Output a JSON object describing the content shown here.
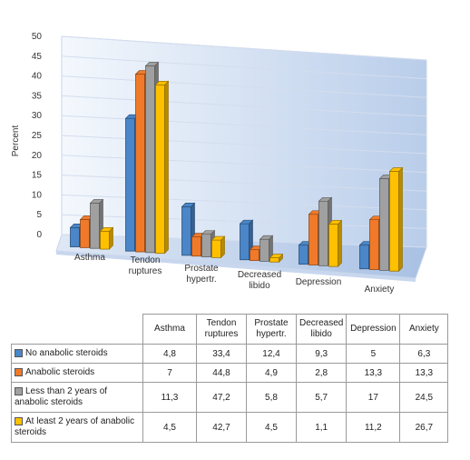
{
  "chart_data": {
    "type": "bar",
    "title": "",
    "ylabel": "Percent",
    "xlabel": "",
    "ylim": [
      0,
      50
    ],
    "yticks": [
      0,
      5,
      10,
      15,
      20,
      25,
      30,
      35,
      40,
      45,
      50
    ],
    "categories": [
      "Asthma",
      "Tendon ruptures",
      "Prostate hypertr.",
      "Decreased libido",
      "Depression",
      "Anxiety"
    ],
    "series": [
      {
        "name": "No anabolic steroids",
        "color": "#4a86c8",
        "values": [
          4.8,
          33.4,
          12.4,
          9.3,
          5,
          6.3
        ]
      },
      {
        "name": "Anabolic steroids",
        "color": "#f07a2a",
        "values": [
          7,
          44.8,
          4.9,
          2.8,
          13.3,
          13.3
        ]
      },
      {
        "name": "Less than 2 years of anabolic steroids",
        "color": "#a0a0a0",
        "values": [
          11.3,
          47.2,
          5.8,
          5.7,
          17,
          24.5
        ]
      },
      {
        "name": "At least 2 years of anabolic steroids",
        "color": "#ffc000",
        "values": [
          4.5,
          42.7,
          4.5,
          1.1,
          11.2,
          26.7
        ]
      }
    ],
    "grid": true,
    "legend": "table-below"
  },
  "table": {
    "headers": [
      "Asthma",
      "Tendon ruptures",
      "Prostate hypertr.",
      "Decreased libido",
      "Depression",
      "Anxiety"
    ],
    "rows": [
      {
        "label": "No anabolic steroids",
        "color": "#4a86c8",
        "cells": [
          "4,8",
          "33,4",
          "12,4",
          "9,3",
          "5",
          "6,3"
        ]
      },
      {
        "label": "Anabolic steroids",
        "color": "#f07a2a",
        "cells": [
          "7",
          "44,8",
          "4,9",
          "2,8",
          "13,3",
          "13,3"
        ]
      },
      {
        "label": "Less than 2 years of anabolic steroids",
        "color": "#a0a0a0",
        "cells": [
          "11,3",
          "47,2",
          "5,8",
          "5,7",
          "17",
          "24,5"
        ]
      },
      {
        "label": "At least 2 years of anabolic steroids",
        "color": "#ffc000",
        "cells": [
          "4,5",
          "42,7",
          "4,5",
          "1,1",
          "11,2",
          "26,7"
        ]
      }
    ]
  }
}
